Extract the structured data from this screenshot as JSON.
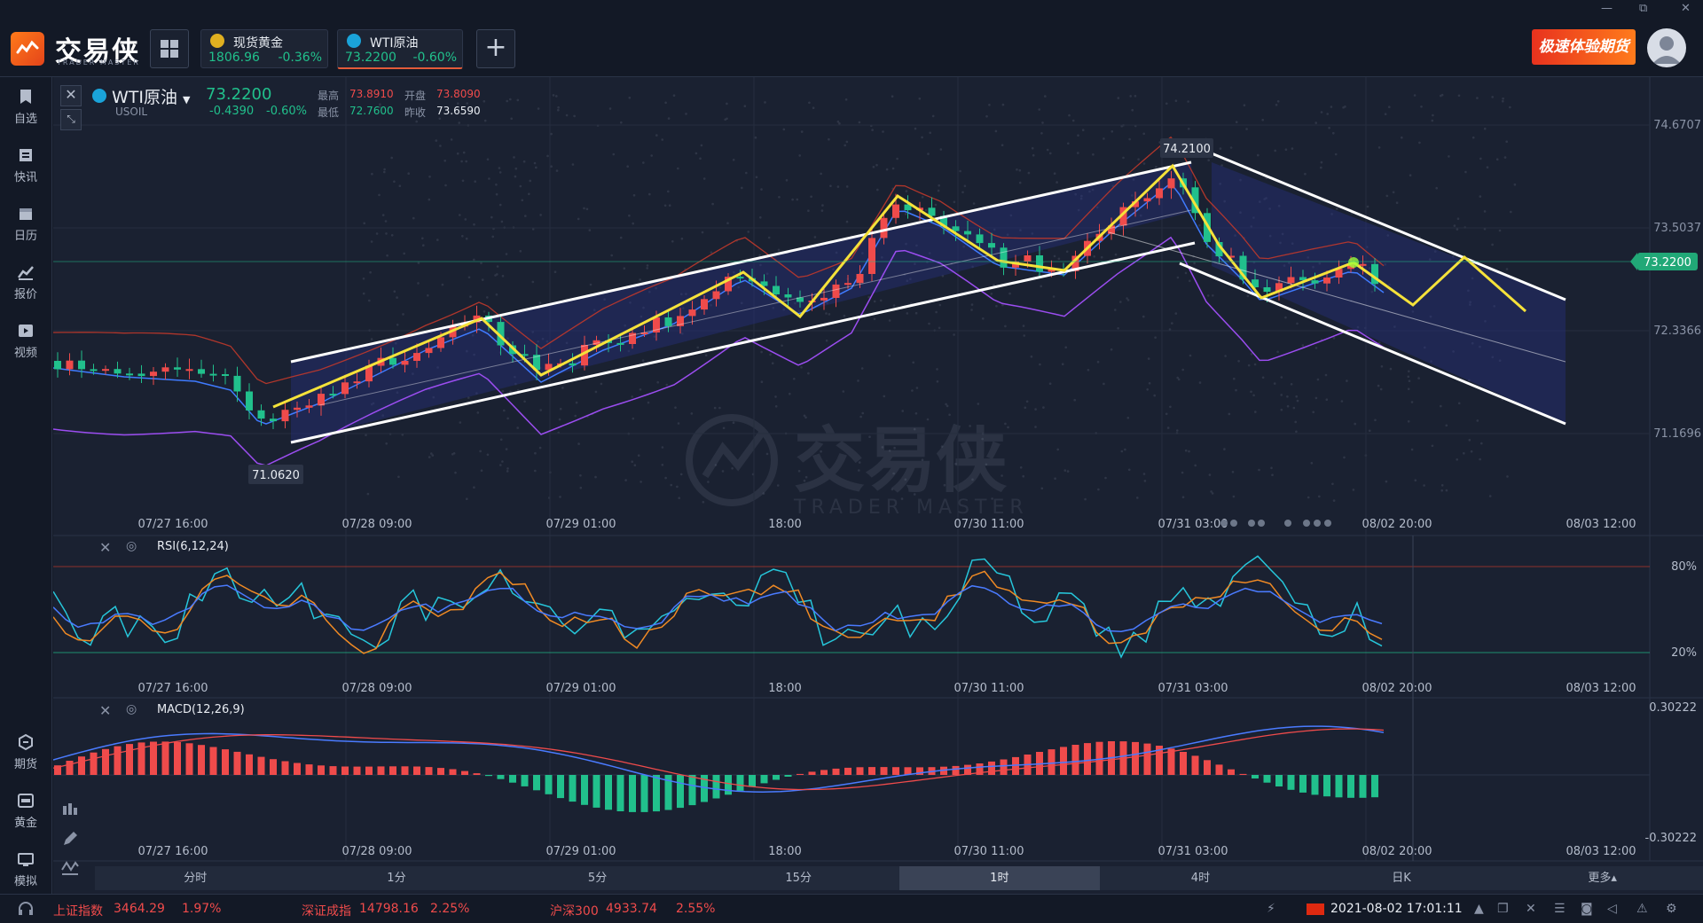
{
  "app": {
    "brand": "交易侠",
    "brand_sub": "TRADER MASTER"
  },
  "window_controls": [
    "—",
    "⧉",
    "✕"
  ],
  "quotes": [
    {
      "name": "现货黄金",
      "price": "1806.96",
      "change": "-0.36%",
      "icon_color": "#e0b020"
    },
    {
      "name": "WTI原油",
      "price": "73.2200",
      "change": "-0.60%",
      "icon_color": "#1aa3d9"
    }
  ],
  "promo": {
    "label": "极速体验期货"
  },
  "sidebar_top": [
    {
      "label": "自选",
      "icon": "bookmark-icon"
    },
    {
      "label": "快讯",
      "icon": "news-icon"
    },
    {
      "label": "日历",
      "icon": "calendar-icon"
    },
    {
      "label": "报价",
      "icon": "quote-icon"
    },
    {
      "label": "视频",
      "icon": "video-icon"
    }
  ],
  "sidebar_bottom": [
    {
      "label": "期货",
      "icon": "futures-icon"
    },
    {
      "label": "黄金",
      "icon": "gold-icon"
    },
    {
      "label": "模拟",
      "icon": "simulate-icon"
    }
  ],
  "instrument": {
    "name": "WTI原油",
    "code": "USOIL",
    "price": "73.2200",
    "change": "-0.4390",
    "change_pct": "-0.60%",
    "high_label": "最高",
    "high": "73.8910",
    "open_label": "开盘",
    "open": "73.8090",
    "low_label": "最低",
    "low": "72.7600",
    "prev_label": "昨收",
    "prev": "73.6590"
  },
  "watermark": {
    "text": "交易侠",
    "sub": "TRADER MASTER"
  },
  "chart_data": [
    {
      "type": "candlestick",
      "y_ticks": [
        "74.6707",
        "73.5037",
        "72.3366",
        "71.1696"
      ],
      "current_price_label": "73.2200",
      "annotations": {
        "high": "74.2100",
        "low": "71.0620"
      },
      "x_ticks": [
        "07/27 16:00",
        "07/28 09:00",
        "07/29 01:00",
        "18:00",
        "07/30 11:00",
        "07/31 03:00",
        "08/02 20:00",
        "08/03 12:00"
      ],
      "overlays": [
        "Bollinger Bands",
        "trend channel",
        "zigzag"
      ]
    },
    {
      "type": "line",
      "title": "RSI(6,12,24)",
      "levels": [
        "80%",
        "20%"
      ],
      "series_colors": [
        "#26c6da",
        "#f08a24",
        "#4a7bff"
      ],
      "x_ticks": [
        "07/27 16:00",
        "07/28 09:00",
        "07/29 01:00",
        "18:00",
        "07/30 11:00",
        "07/31 03:00",
        "08/02 20:00",
        "08/03 12:00"
      ]
    },
    {
      "type": "bar",
      "title": "MACD(12,26,9)",
      "y_ticks": [
        "0.30222",
        "-0.30222"
      ],
      "x_ticks": [
        "07/27 16:00",
        "07/28 09:00",
        "07/29 01:00",
        "18:00",
        "07/30 11:00",
        "07/31 03:00",
        "08/02 20:00",
        "08/03 12:00"
      ]
    }
  ],
  "timeframes": [
    {
      "label": "分时",
      "active": false
    },
    {
      "label": "1分",
      "active": false
    },
    {
      "label": "5分",
      "active": false
    },
    {
      "label": "15分",
      "active": false
    },
    {
      "label": "1时",
      "active": true
    },
    {
      "label": "4时",
      "active": false
    },
    {
      "label": "日K",
      "active": false
    },
    {
      "label": "更多▴",
      "active": false
    }
  ],
  "status_bar": {
    "indices": [
      {
        "name": "上证指数",
        "value": "3464.29",
        "pct": "1.97%"
      },
      {
        "name": "深证成指",
        "value": "14798.16",
        "pct": "2.25%"
      },
      {
        "name": "沪深300",
        "value": "4933.74",
        "pct": "2.55%"
      }
    ],
    "datetime": "2021-08-02 17:01:11"
  },
  "colors": {
    "up": "#ef4b4b",
    "down": "#21c08c",
    "bg": "#141a27",
    "channel": "#ffffff",
    "zigzag": "#f5e23a"
  }
}
